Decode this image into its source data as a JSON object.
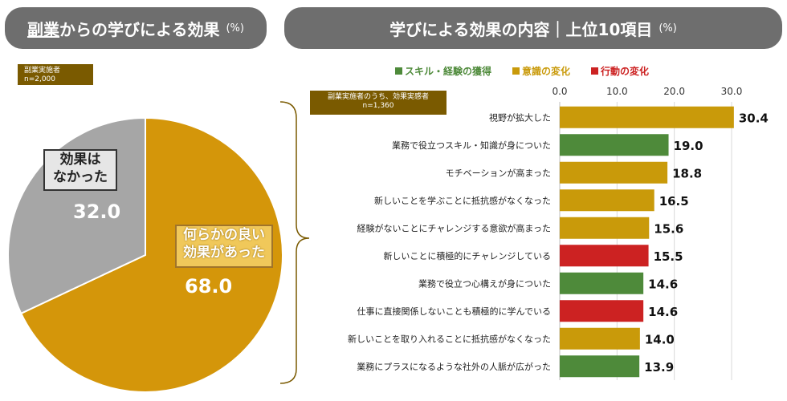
{
  "headers": {
    "left_title_underlined": "副業",
    "left_title_rest": "からの学びによる効果",
    "left_unit": "(%)",
    "right_title": "学びによる効果の内容｜上位10項目",
    "right_unit": "(%)"
  },
  "tags": {
    "left_line1": "副業実施者",
    "left_line2": "n=2,000",
    "right_line1": "副業実施者のうち、効果実感者",
    "right_line2": "n=1,360"
  },
  "chart_data": [
    {
      "type": "pie",
      "slices": [
        {
          "label": "何らかの良い効果があった",
          "label_lines": [
            "何らかの良い",
            "効果があった"
          ],
          "value": 68.0,
          "display": "68.0",
          "color": "#d4960a"
        },
        {
          "label": "効果はなかった",
          "label_lines": [
            "効果は",
            "なかった"
          ],
          "value": 32.0,
          "display": "32.0",
          "color": "#a6a6a6"
        }
      ]
    },
    {
      "type": "bar",
      "orientation": "horizontal",
      "xlim": [
        0,
        30
      ],
      "xticks": [
        "0.0",
        "10.0",
        "20.0",
        "30.0"
      ],
      "grid": true,
      "legend": {
        "placement": "top",
        "items": [
          {
            "label": "スキル・経験の獲得",
            "color": "#4e8a3a"
          },
          {
            "label": "意識の変化",
            "color": "#c99a0a"
          },
          {
            "label": "行動の変化",
            "color": "#cc2222"
          }
        ]
      },
      "categories": [
        "視野が拡大した",
        "業務で役立つスキル・知識が身についた",
        "モチベーションが高まった",
        "新しいことを学ぶことに抵抗感がなくなった",
        "経験がないことにチャレンジする意欲が高まった",
        "新しいことに積極的にチャレンジしている",
        "業務で役立つ心構えが身についた",
        "仕事に直接関係しないことも積極的に学んでいる",
        "新しいことを取り入れることに抵抗感がなくなった",
        "業務にプラスになるような社外の人脈が広がった"
      ],
      "values": [
        30.4,
        19.0,
        18.8,
        16.5,
        15.6,
        15.5,
        14.6,
        14.6,
        14.0,
        13.9
      ],
      "value_labels": [
        "30.4",
        "19.0",
        "18.8",
        "16.5",
        "15.6",
        "15.5",
        "14.6",
        "14.6",
        "14.0",
        "13.9"
      ],
      "groups": [
        "意識の変化",
        "スキル・経験の獲得",
        "意識の変化",
        "意識の変化",
        "意識の変化",
        "行動の変化",
        "スキル・経験の獲得",
        "行動の変化",
        "意識の変化",
        "スキル・経験の獲得"
      ]
    }
  ]
}
